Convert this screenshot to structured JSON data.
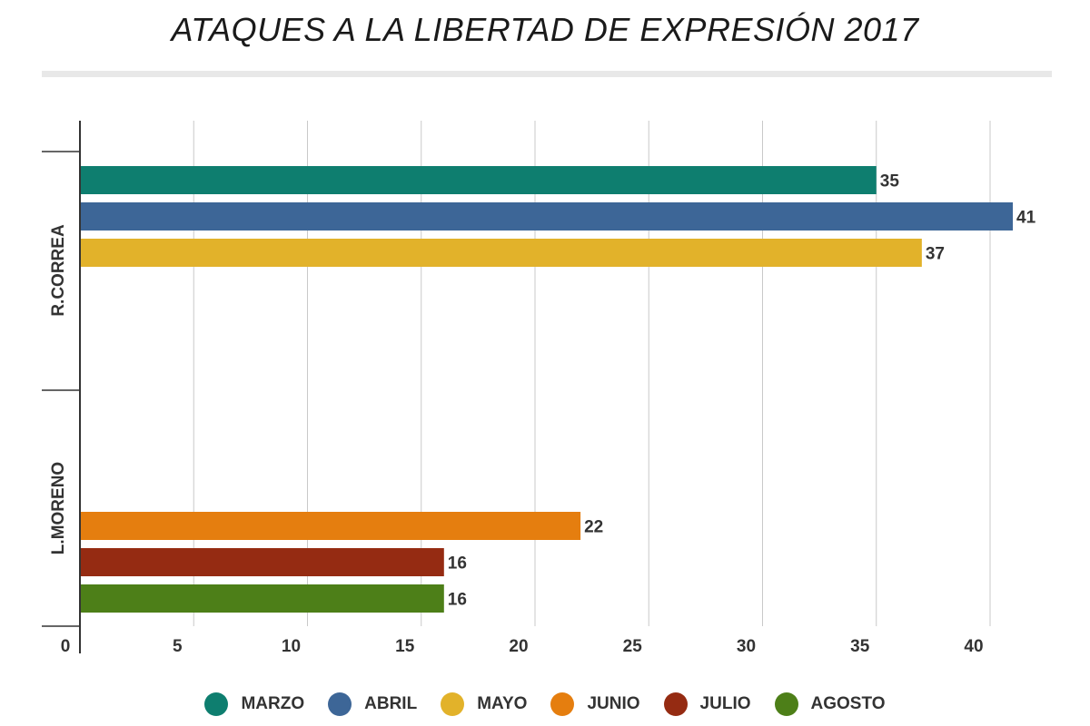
{
  "chart_data": {
    "type": "bar",
    "orientation": "horizontal",
    "title": "ATAQUES A LA LIBERTAD DE EXPRESIÓN 2017",
    "categories": [
      "R.CORREA",
      "L.MORENO"
    ],
    "series": [
      {
        "name": "MARZO",
        "color": "#0e7e6f",
        "values": [
          35,
          null
        ]
      },
      {
        "name": "ABRIL",
        "color": "#3d6697",
        "values": [
          41,
          null
        ]
      },
      {
        "name": "MAYO",
        "color": "#e2b22a",
        "values": [
          37,
          null
        ]
      },
      {
        "name": "JUNIO",
        "color": "#e57e0f",
        "values": [
          null,
          22
        ]
      },
      {
        "name": "JULIO",
        "color": "#952b12",
        "values": [
          null,
          16
        ]
      },
      {
        "name": "AGOSTO",
        "color": "#4d7f18",
        "values": [
          null,
          16
        ]
      }
    ],
    "xlim": [
      0,
      43
    ],
    "xticks": [
      0,
      5,
      10,
      15,
      20,
      25,
      30,
      35,
      40
    ],
    "grid": true,
    "legend": "bottom",
    "data_labels": true
  }
}
